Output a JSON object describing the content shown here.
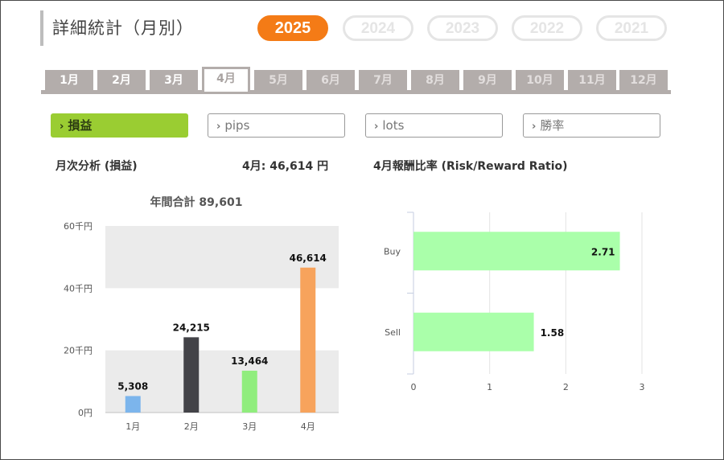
{
  "header": {
    "title": "詳細統計（月別）"
  },
  "years": [
    {
      "label": "2025",
      "active": true
    },
    {
      "label": "2024",
      "active": false
    },
    {
      "label": "2023",
      "active": false
    },
    {
      "label": "2022",
      "active": false
    },
    {
      "label": "2021",
      "active": false
    }
  ],
  "months": [
    {
      "label": "1月",
      "state": "enabled"
    },
    {
      "label": "2月",
      "state": "enabled"
    },
    {
      "label": "3月",
      "state": "enabled"
    },
    {
      "label": "4月",
      "state": "active"
    },
    {
      "label": "5月",
      "state": "muted"
    },
    {
      "label": "6月",
      "state": "muted"
    },
    {
      "label": "7月",
      "state": "muted"
    },
    {
      "label": "8月",
      "state": "muted"
    },
    {
      "label": "9月",
      "state": "muted"
    },
    {
      "label": "10月",
      "state": "muted"
    },
    {
      "label": "11月",
      "state": "muted"
    },
    {
      "label": "12月",
      "state": "muted"
    }
  ],
  "metric_tabs": [
    {
      "label": "損益",
      "active": true
    },
    {
      "label": "pips",
      "active": false
    },
    {
      "label": "lots",
      "active": false
    },
    {
      "label": "勝率",
      "active": false
    }
  ],
  "chevron_glyph": "›",
  "summary": {
    "left_heading": "月次分析 (損益)",
    "month_value": "4月:  46,614 円",
    "right_heading": "4月報酬比率 (Risk/Reward Ratio)"
  },
  "colors": {
    "accent": "#f47b16",
    "active_metric": "#9acd32",
    "tab_gray": "#b3adab"
  },
  "chart_data": [
    {
      "type": "bar",
      "title": "年間合計 89,601",
      "categories": [
        "1月",
        "2月",
        "3月",
        "4月"
      ],
      "values": [
        5308,
        24215,
        13464,
        46614
      ],
      "value_labels": [
        "5,308",
        "24,215",
        "13,464",
        "46,614"
      ],
      "bar_colors": [
        "#7cb5ec",
        "#434348",
        "#90ed7d",
        "#f7a35c"
      ],
      "ylim": [
        0,
        60000
      ],
      "yticks": [
        0,
        20000,
        40000,
        60000
      ],
      "ytick_labels": [
        "0円",
        "20千円",
        "40千円",
        "60千円"
      ],
      "banded_background": true
    },
    {
      "type": "bar",
      "orientation": "horizontal",
      "categories": [
        "Buy",
        "Sell"
      ],
      "values": [
        2.71,
        1.58
      ],
      "value_labels": [
        "2.71",
        "1.58"
      ],
      "bar_color": "#aaffaa",
      "xlim": [
        0,
        3
      ],
      "xticks": [
        0,
        1,
        2,
        3
      ],
      "xtick_labels": [
        "0",
        "1",
        "2",
        "3"
      ],
      "grid": true
    }
  ]
}
